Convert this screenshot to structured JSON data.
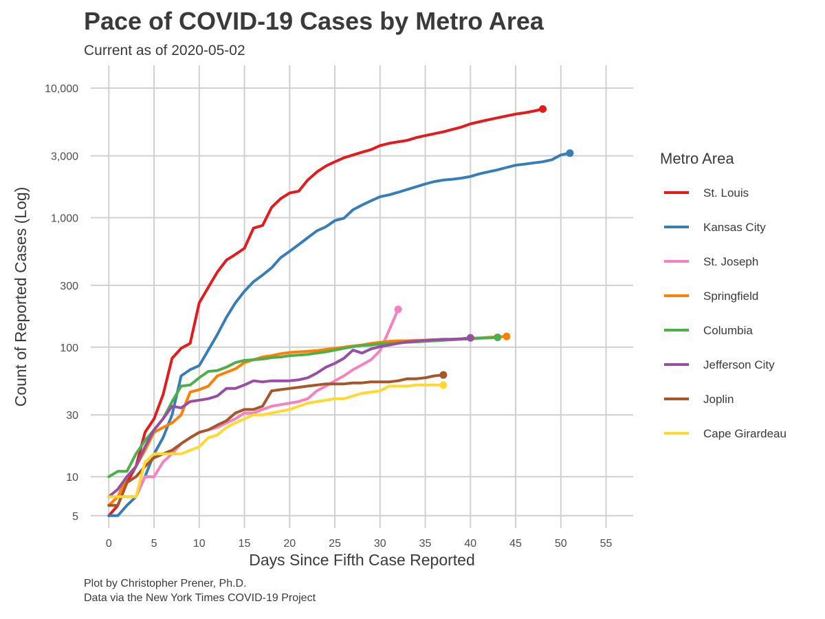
{
  "chart_data": {
    "type": "line",
    "title": "Pace of COVID-19 Cases by Metro Area",
    "subtitle": "Current as of 2020-05-02",
    "xlabel": "Days Since Fifth Case Reported",
    "ylabel": "Count of Reported Cases (Log)",
    "y_scale": "log",
    "xlim": [
      -2,
      58
    ],
    "ylim": [
      4,
      15000
    ],
    "x_ticks": [
      0,
      5,
      10,
      15,
      20,
      25,
      30,
      35,
      40,
      45,
      50,
      55
    ],
    "x_tick_labels": [
      "0",
      "5",
      "10",
      "15",
      "20",
      "25",
      "30",
      "35",
      "40",
      "45",
      "50",
      "55"
    ],
    "y_ticks": [
      5,
      10,
      30,
      100,
      300,
      1000,
      3000,
      10000
    ],
    "y_tick_labels": [
      "5",
      "10",
      "30",
      "100",
      "300",
      "1,000",
      "3,000",
      "10,000"
    ],
    "grid": true,
    "legend_title": "Metro Area",
    "legend_position": "right",
    "captions": [
      "Plot by Christopher Prener, Ph.D.",
      "Data via the New York Times COVID-19 Project"
    ],
    "series": [
      {
        "name": "St. Louis",
        "color": "#e41a1c",
        "x": [
          0,
          1,
          2,
          3,
          4,
          5,
          6,
          7,
          8,
          9,
          10,
          11,
          12,
          13,
          14,
          15,
          16,
          17,
          18,
          19,
          20,
          21,
          22,
          23,
          24,
          25,
          26,
          27,
          28,
          29,
          30,
          31,
          32,
          33,
          34,
          35,
          36,
          37,
          38,
          39,
          40,
          41,
          42,
          43,
          44,
          45,
          46,
          47,
          48
        ],
        "y": [
          5,
          6,
          9,
          12,
          22,
          28,
          43,
          82,
          98,
          107,
          220,
          290,
          380,
          470,
          520,
          580,
          830,
          870,
          1200,
          1400,
          1550,
          1600,
          1950,
          2250,
          2500,
          2700,
          2900,
          3050,
          3200,
          3350,
          3600,
          3750,
          3850,
          3950,
          4150,
          4300,
          4450,
          4600,
          4800,
          5000,
          5300,
          5500,
          5700,
          5900,
          6100,
          6300,
          6450,
          6650,
          6900
        ]
      },
      {
        "name": "Kansas City",
        "color": "#377eb8",
        "x": [
          0,
          1,
          2,
          3,
          4,
          5,
          6,
          7,
          8,
          9,
          10,
          11,
          12,
          13,
          14,
          15,
          16,
          17,
          18,
          19,
          20,
          21,
          22,
          23,
          24,
          25,
          26,
          27,
          28,
          29,
          30,
          31,
          32,
          33,
          34,
          35,
          36,
          37,
          38,
          39,
          40,
          41,
          42,
          43,
          44,
          45,
          46,
          47,
          48,
          49,
          50,
          51
        ],
        "y": [
          5,
          5,
          6,
          7,
          10,
          15,
          20,
          30,
          60,
          67,
          72,
          95,
          125,
          170,
          220,
          270,
          320,
          360,
          410,
          490,
          550,
          620,
          700,
          790,
          850,
          950,
          990,
          1150,
          1250,
          1350,
          1450,
          1500,
          1570,
          1650,
          1730,
          1820,
          1900,
          1950,
          1980,
          2020,
          2080,
          2180,
          2260,
          2340,
          2440,
          2540,
          2590,
          2650,
          2700,
          2800,
          3050,
          3150
        ]
      },
      {
        "name": "St. Joseph",
        "color": "#f781bf",
        "x": [
          0,
          1,
          2,
          3,
          4,
          5,
          6,
          7,
          8,
          9,
          10,
          11,
          12,
          13,
          14,
          15,
          16,
          17,
          18,
          19,
          20,
          21,
          22,
          23,
          24,
          25,
          26,
          27,
          28,
          29,
          30,
          31,
          32
        ],
        "y": [
          7,
          7,
          7,
          7,
          10,
          10,
          13,
          15,
          18,
          20,
          22,
          23,
          24,
          26,
          28,
          31,
          31,
          33,
          35,
          36,
          37,
          38,
          40,
          46,
          50,
          55,
          60,
          67,
          73,
          80,
          94,
          135,
          196
        ]
      },
      {
        "name": "Springfield",
        "color": "#ff7f00",
        "x": [
          0,
          1,
          2,
          3,
          4,
          5,
          6,
          7,
          8,
          9,
          10,
          11,
          12,
          13,
          14,
          15,
          16,
          17,
          18,
          19,
          20,
          21,
          22,
          23,
          24,
          25,
          26,
          27,
          28,
          29,
          30,
          31,
          32,
          33,
          34,
          35,
          36,
          37,
          38,
          39,
          40,
          41,
          42,
          43,
          44
        ],
        "y": [
          6,
          7,
          10,
          12,
          16,
          22,
          24,
          26,
          30,
          45,
          47,
          50,
          60,
          64,
          68,
          76,
          80,
          84,
          86,
          89,
          91,
          92,
          93,
          94,
          96,
          98,
          100,
          102,
          104,
          107,
          109,
          111,
          112,
          112,
          113,
          113,
          114,
          114,
          115,
          116,
          117,
          118,
          119,
          120,
          121
        ]
      },
      {
        "name": "Columbia",
        "color": "#4daf4a",
        "x": [
          0,
          1,
          2,
          3,
          4,
          5,
          6,
          7,
          8,
          9,
          10,
          11,
          12,
          13,
          14,
          15,
          16,
          17,
          18,
          19,
          20,
          21,
          22,
          23,
          24,
          25,
          26,
          27,
          28,
          29,
          30,
          31,
          32,
          33,
          34,
          35,
          36,
          37,
          38,
          39,
          40,
          41,
          42,
          43
        ],
        "y": [
          10,
          11,
          11,
          15,
          19,
          23,
          28,
          38,
          50,
          51,
          58,
          65,
          66,
          70,
          76,
          79,
          80,
          81,
          83,
          84,
          86,
          87,
          88,
          90,
          92,
          95,
          98,
          101,
          103,
          104,
          106,
          107,
          108,
          109,
          110,
          111,
          112,
          113,
          114,
          115,
          116,
          117,
          118,
          119
        ]
      },
      {
        "name": "Jefferson City",
        "color": "#984ea3",
        "x": [
          0,
          1,
          2,
          3,
          4,
          5,
          6,
          7,
          8,
          9,
          10,
          11,
          12,
          13,
          14,
          15,
          16,
          17,
          18,
          19,
          20,
          21,
          22,
          23,
          24,
          25,
          26,
          27,
          28,
          29,
          30,
          31,
          32,
          33,
          34,
          35,
          36,
          37,
          38,
          39,
          40
        ],
        "y": [
          7,
          8,
          10,
          12,
          17,
          23,
          28,
          35,
          34,
          38,
          39,
          40,
          42,
          48,
          48,
          51,
          55,
          54,
          55,
          55,
          55,
          56,
          58,
          63,
          70,
          75,
          82,
          95,
          90,
          97,
          101,
          104,
          107,
          110,
          111,
          113,
          114,
          115,
          115,
          116,
          118
        ]
      },
      {
        "name": "Joplin",
        "color": "#a65628",
        "x": [
          0,
          1,
          2,
          3,
          4,
          5,
          6,
          7,
          8,
          9,
          10,
          11,
          12,
          13,
          14,
          15,
          16,
          17,
          18,
          19,
          20,
          21,
          22,
          23,
          24,
          25,
          26,
          27,
          28,
          29,
          30,
          31,
          32,
          33,
          34,
          35,
          36,
          37
        ],
        "y": [
          6,
          6,
          9,
          10,
          12,
          14,
          15,
          16,
          18,
          20,
          22,
          23,
          25,
          27,
          31,
          33,
          33,
          35,
          46,
          47,
          48,
          49,
          50,
          51,
          52,
          52,
          52,
          53,
          53,
          54,
          54,
          54,
          55,
          57,
          57,
          58,
          60,
          61
        ]
      },
      {
        "name": "Cape Girardeau",
        "color": "#ffd92f",
        "x": [
          0,
          1,
          2,
          3,
          4,
          5,
          6,
          7,
          8,
          9,
          10,
          11,
          12,
          13,
          14,
          15,
          16,
          17,
          18,
          19,
          20,
          21,
          22,
          23,
          24,
          25,
          26,
          27,
          28,
          29,
          30,
          31,
          32,
          33,
          34,
          35,
          36,
          37
        ],
        "y": [
          7,
          7,
          7,
          7,
          13,
          15,
          15,
          15,
          15,
          16,
          17,
          20,
          21,
          24,
          26,
          28,
          30,
          30,
          31,
          32,
          33,
          35,
          37,
          38,
          39,
          40,
          40,
          42,
          44,
          45,
          46,
          50,
          50,
          50,
          51,
          51,
          51,
          51
        ]
      }
    ]
  }
}
